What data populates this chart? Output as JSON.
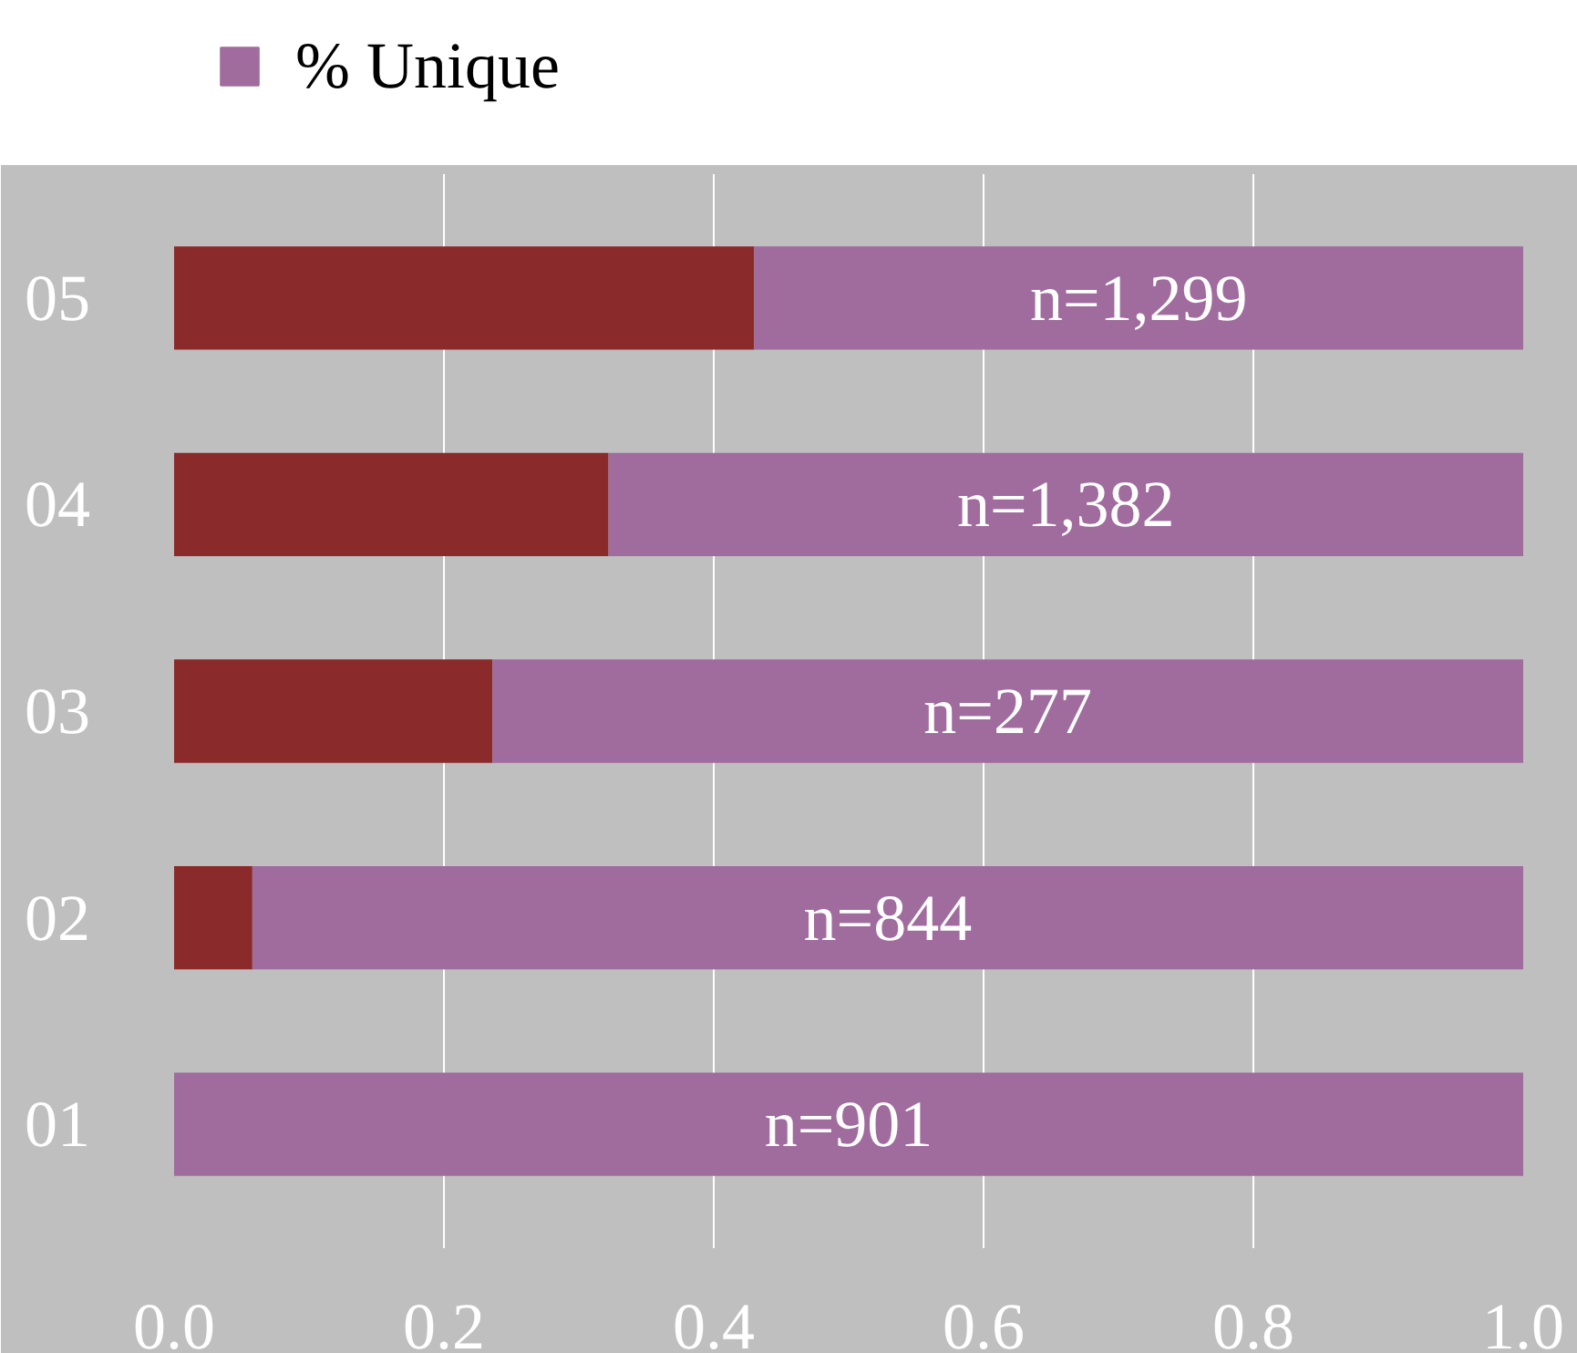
{
  "chart_data": {
    "type": "bar",
    "orientation": "horizontal",
    "stacked": true,
    "categories": [
      "05",
      "04",
      "03",
      "02",
      "01"
    ],
    "series": [
      {
        "color": "#8b2a2a",
        "values": [
          0.43,
          0.322,
          0.236,
          0.058,
          0.0
        ]
      },
      {
        "name": "% Unique",
        "color": "#a06c9e",
        "values": [
          0.57,
          0.678,
          0.764,
          0.942,
          1.0
        ]
      }
    ],
    "xlim": [
      0,
      1
    ],
    "xticks": [
      {
        "value": 0,
        "label": "0.0"
      },
      {
        "value": 0.2,
        "label": "0.2"
      },
      {
        "value": 0.4,
        "label": "0.4"
      },
      {
        "value": 0.6,
        "label": "0.6"
      },
      {
        "value": 0.8,
        "label": "0.8"
      },
      {
        "value": 1,
        "label": "1.0"
      }
    ],
    "grid": "x",
    "legend": "top left",
    "annotations": [
      "n=1,299",
      "n=1,382",
      "n=277",
      "n=844",
      "n=901"
    ]
  }
}
